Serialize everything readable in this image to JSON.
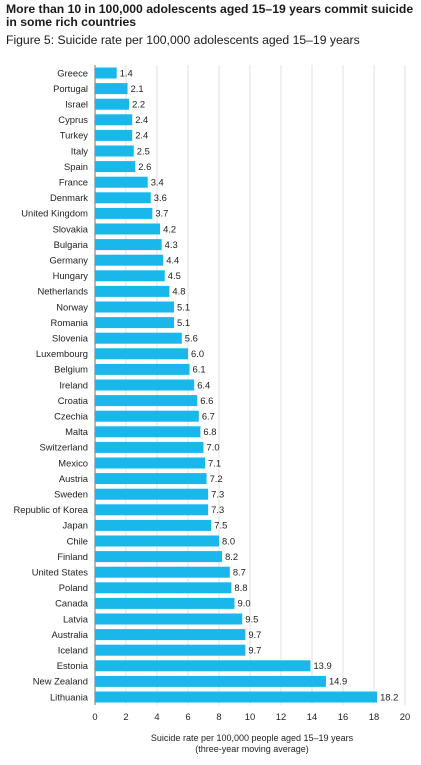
{
  "headline": "More than 10 in 100,000 adolescents aged 15–19 years commit suicide in some rich countries",
  "figure_title": "Figure 5: Suicide rate per 100,000 adolescents aged 15–19 years",
  "colors": {
    "bar": "#1ab7ea",
    "grid": "#d9d9d9",
    "axis": "#555555"
  },
  "chart_data": {
    "type": "bar",
    "orientation": "horizontal",
    "categories": [
      "Greece",
      "Portugal",
      "Israel",
      "Cyprus",
      "Turkey",
      "Italy",
      "Spain",
      "France",
      "Denmark",
      "United Kingdom",
      "Slovakia",
      "Bulgaria",
      "Germany",
      "Hungary",
      "Netherlands",
      "Norway",
      "Romania",
      "Slovenia",
      "Luxembourg",
      "Belgium",
      "Ireland",
      "Croatia",
      "Czechia",
      "Malta",
      "Switzerland",
      "Mexico",
      "Austria",
      "Sweden",
      "Republic of Korea",
      "Japan",
      "Chile",
      "Finland",
      "United States",
      "Poland",
      "Canada",
      "Latvia",
      "Australia",
      "Iceland",
      "Estonia",
      "New Zealand",
      "Lithuania"
    ],
    "values": [
      1.4,
      2.1,
      2.2,
      2.4,
      2.4,
      2.5,
      2.6,
      3.4,
      3.6,
      3.7,
      4.2,
      4.3,
      4.4,
      4.5,
      4.8,
      5.1,
      5.1,
      5.6,
      6.0,
      6.1,
      6.4,
      6.6,
      6.7,
      6.8,
      7.0,
      7.1,
      7.2,
      7.3,
      7.3,
      7.5,
      8.0,
      8.2,
      8.7,
      8.8,
      9.0,
      9.5,
      9.7,
      9.7,
      13.9,
      14.9,
      18.2
    ],
    "value_labels": [
      "1.4",
      "2.1",
      "2.2",
      "2.4",
      "2.4",
      "2.5",
      "2.6",
      "3.4",
      "3.6",
      "3.7",
      "4.2",
      "4.3",
      "4.4",
      "4.5",
      "4.8",
      "5.1",
      "5.1",
      "5.6",
      "6.0",
      "6.1",
      "6.4",
      "6.6",
      "6.7",
      "6.8",
      "7.0",
      "7.1",
      "7.2",
      "7.3",
      "7.3",
      "7.5",
      "8.0",
      "8.2",
      "8.7",
      "8.8",
      "9.0",
      "9.5",
      "9.7",
      "9.7",
      "13.9",
      "14.9",
      "18.2"
    ],
    "x_ticks": [
      "0",
      "2",
      "4",
      "6",
      "8",
      "10",
      "12",
      "14",
      "16",
      "18",
      "20"
    ],
    "xlim": [
      0,
      20
    ],
    "xlabel": "Suicide rate per 100,000 people aged 15–19 years",
    "xlabel_sub": "(three-year moving average)",
    "grid": true,
    "grid_axis": "x"
  }
}
